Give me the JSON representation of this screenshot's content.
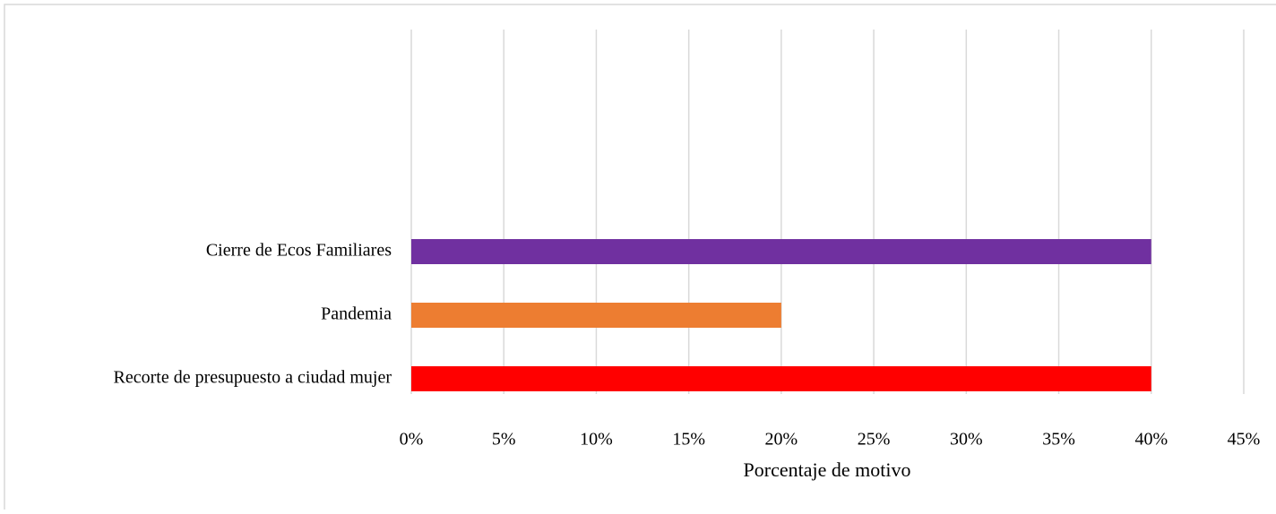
{
  "chart_data": {
    "type": "barh",
    "x_label": "Porcentaje de motivo",
    "categories": [
      "Cierre de Ecos Familiares",
      "Pandemia",
      "Recorte de presupuesto a ciudad mujer"
    ],
    "values": [
      40,
      20,
      40
    ],
    "colors": [
      "#7030a0",
      "#ed7d31",
      "#ff0000"
    ],
    "xlim": [
      0,
      45
    ],
    "xticks": [
      {
        "value": 0,
        "label": "0%"
      },
      {
        "value": 5,
        "label": "5%"
      },
      {
        "value": 10,
        "label": "10%"
      },
      {
        "value": 15,
        "label": "15%"
      },
      {
        "value": 20,
        "label": "20%"
      },
      {
        "value": 25,
        "label": "25%"
      },
      {
        "value": 30,
        "label": "30%"
      },
      {
        "value": 35,
        "label": "35%"
      },
      {
        "value": 40,
        "label": "40%"
      },
      {
        "value": 45,
        "label": "45%"
      }
    ],
    "grid": true
  }
}
